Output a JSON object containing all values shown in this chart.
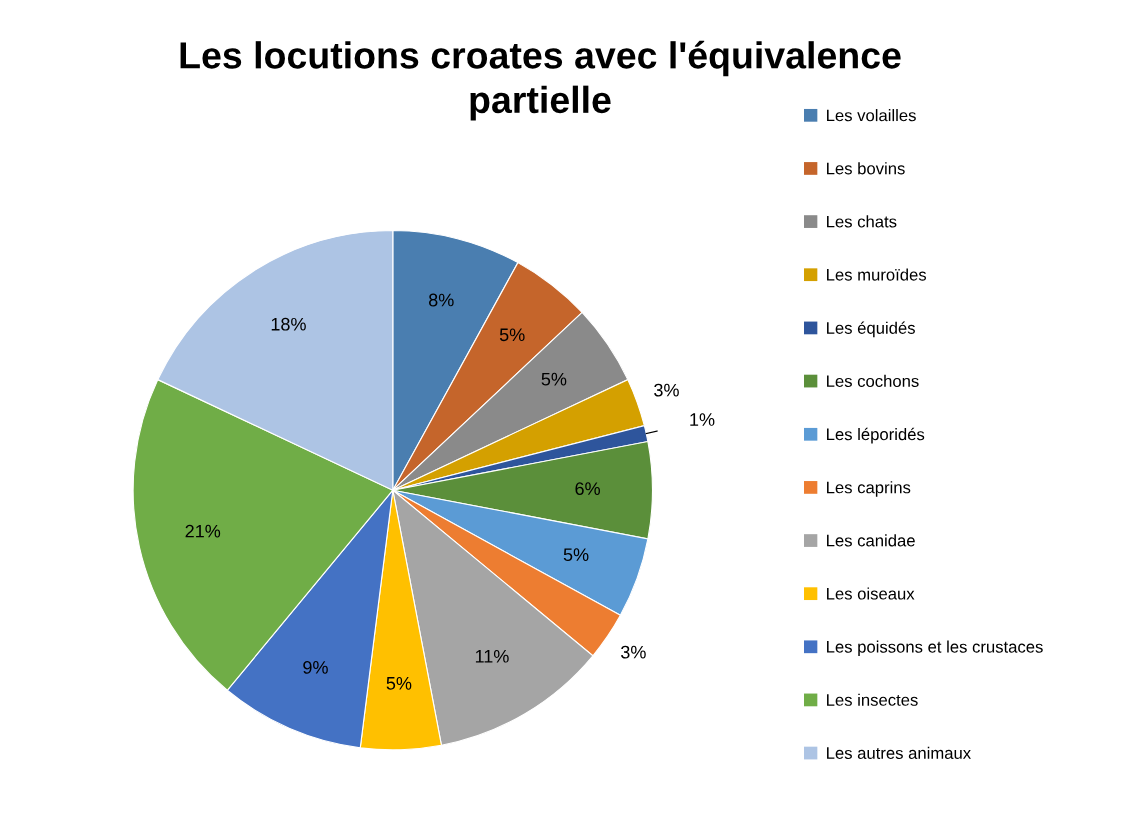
{
  "chart_data": {
    "type": "pie",
    "title": "Les locutions croates avec l'équivalence partielle",
    "categories": [
      "Les volailles",
      "Les bovins",
      "Les chats",
      "Les muroïdes",
      "Les équidés",
      "Les cochons",
      "Les léporidés",
      "Les caprins",
      "Les canidae",
      "Les oiseaux",
      "Les poissons et les crustaces",
      "Les insectes",
      "Les autres animaux"
    ],
    "values": [
      8,
      5,
      5,
      3,
      1,
      6,
      5,
      3,
      11,
      5,
      9,
      21,
      18
    ],
    "value_labels": [
      "8%",
      "5%",
      "5%",
      "3%",
      "1%",
      "6%",
      "5%",
      "3%",
      "11%",
      "5%",
      "9%",
      "21%",
      "18%"
    ],
    "colors": [
      "#4a7eb0",
      "#c5652b",
      "#8a8a8a",
      "#d4a000",
      "#2e559c",
      "#5b8f3a",
      "#5b9bd5",
      "#ed7d31",
      "#a5a5a5",
      "#ffc000",
      "#4472c4",
      "#70ad47",
      "#adc4e4"
    ],
    "legend": "right"
  }
}
